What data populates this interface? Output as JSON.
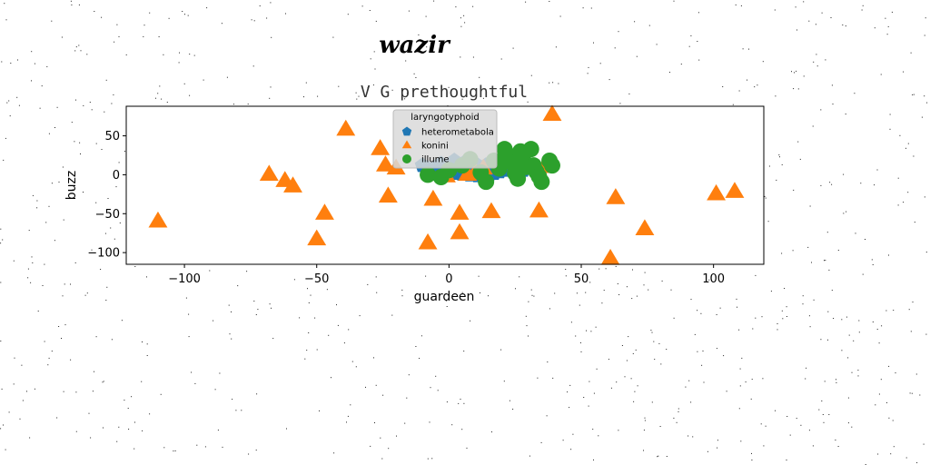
{
  "chart_data": {
    "type": "scatter",
    "suptitle": "wazir",
    "title": "V G prethoughtful",
    "xlabel": "guardeen",
    "ylabel": "buzz",
    "xlim": [
      -122,
      119
    ],
    "ylim": [
      -115,
      88
    ],
    "xticks": [
      -100,
      -50,
      0,
      50,
      100
    ],
    "yticks": [
      50,
      0,
      -50,
      -100
    ],
    "grid": false,
    "legend": {
      "title": "laryngotyphoid",
      "placement": "top-center"
    },
    "series": [
      {
        "name": "heterometabola",
        "marker": "pentagon",
        "color": "#1f77b4",
        "points": [
          [
            -10,
            12
          ],
          [
            -8,
            8
          ],
          [
            -5,
            10
          ],
          [
            -3,
            14
          ],
          [
            -1,
            8
          ],
          [
            1,
            5
          ],
          [
            3,
            2
          ],
          [
            5,
            1
          ],
          [
            8,
            0
          ],
          [
            11,
            -1
          ],
          [
            13,
            -3
          ],
          [
            15,
            -2
          ],
          [
            17,
            2
          ],
          [
            19,
            4
          ],
          [
            21,
            6
          ],
          [
            18,
            10
          ],
          [
            14,
            12
          ],
          [
            10,
            14
          ],
          [
            6,
            16
          ],
          [
            2,
            18
          ],
          [
            12,
            8
          ],
          [
            16,
            6
          ],
          [
            22,
            10
          ],
          [
            25,
            8
          ],
          [
            28,
            6
          ]
        ]
      },
      {
        "name": "konini",
        "marker": "triangle",
        "color": "#ff7f0e",
        "points": [
          [
            -110,
            -60
          ],
          [
            -68,
            0
          ],
          [
            -62,
            -8
          ],
          [
            -59,
            -15
          ],
          [
            -50,
            -83
          ],
          [
            -47,
            -50
          ],
          [
            -39,
            58
          ],
          [
            -26,
            33
          ],
          [
            -24,
            12
          ],
          [
            -23,
            -28
          ],
          [
            -20,
            8
          ],
          [
            -8,
            -88
          ],
          [
            -6,
            -32
          ],
          [
            -1,
            -2
          ],
          [
            4,
            -50
          ],
          [
            4,
            -75
          ],
          [
            7,
            0
          ],
          [
            10,
            3
          ],
          [
            13,
            8
          ],
          [
            16,
            -48
          ],
          [
            34,
            -47
          ],
          [
            36,
            10
          ],
          [
            39,
            77
          ],
          [
            61,
            -108
          ],
          [
            63,
            -30
          ],
          [
            74,
            -70
          ],
          [
            101,
            -25
          ],
          [
            108,
            -22
          ]
        ]
      },
      {
        "name": "illume",
        "marker": "circle",
        "color": "#2ca02c",
        "points": [
          [
            -8,
            0
          ],
          [
            -3,
            -3
          ],
          [
            0,
            6
          ],
          [
            5,
            12
          ],
          [
            8,
            20
          ],
          [
            12,
            3
          ],
          [
            14,
            -9
          ],
          [
            17,
            18
          ],
          [
            19,
            8
          ],
          [
            21,
            33
          ],
          [
            22,
            25
          ],
          [
            24,
            15
          ],
          [
            25,
            2
          ],
          [
            26,
            -5
          ],
          [
            27,
            30
          ],
          [
            28,
            20
          ],
          [
            29,
            10
          ],
          [
            31,
            33
          ],
          [
            32,
            12
          ],
          [
            33,
            4
          ],
          [
            34,
            -2
          ],
          [
            35,
            -9
          ],
          [
            38,
            18
          ],
          [
            39,
            12
          ]
        ]
      }
    ]
  }
}
